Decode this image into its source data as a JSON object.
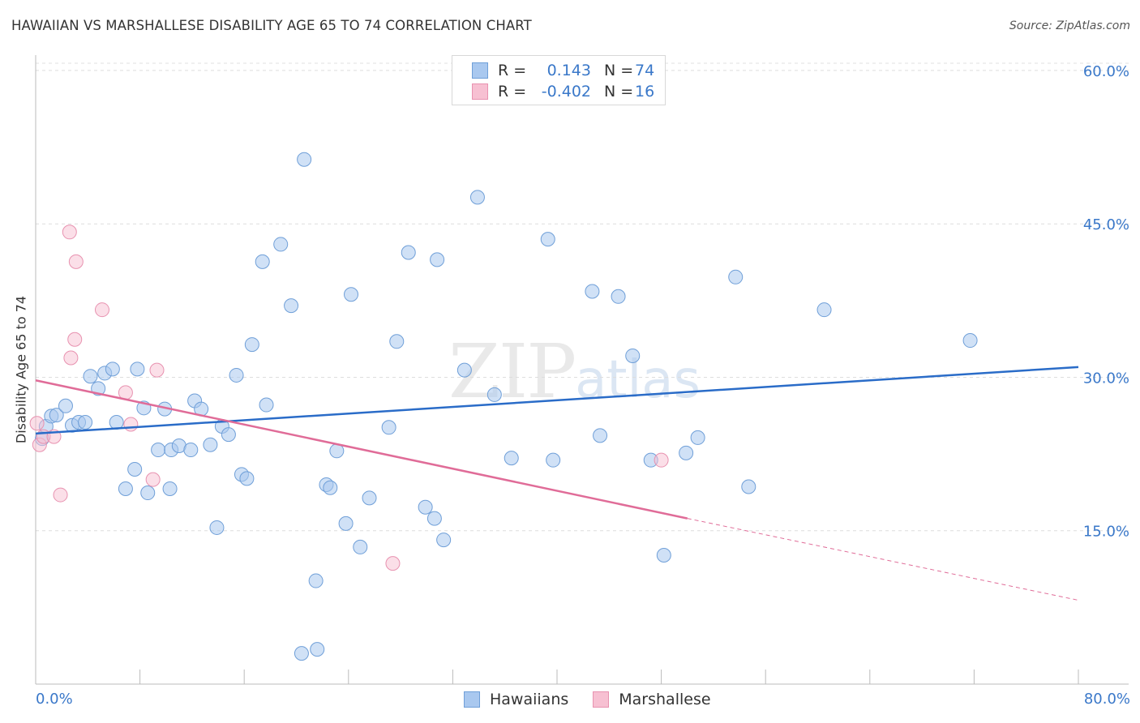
{
  "header": {
    "title": "HAWAIIAN VS MARSHALLESE DISABILITY AGE 65 TO 74 CORRELATION CHART",
    "source": "Source: ZipAtlas.com"
  },
  "watermark": {
    "zip": "ZIP",
    "atlas": "atlas"
  },
  "legend": {
    "series": [
      {
        "r_label": "R =",
        "r_value": "0.143",
        "n_label": "N =",
        "n_value": "74"
      },
      {
        "r_label": "R =",
        "r_value": "-0.402",
        "n_label": "N =",
        "n_value": "16"
      }
    ]
  },
  "bottom_legend": {
    "hawaiians": "Hawaiians",
    "marshallese": "Marshallese"
  },
  "x_axis": {
    "min_label": "0.0%",
    "max_label": "80.0%"
  },
  "colors": {
    "hawaiian_fill": "#a9c8ef",
    "hawaiian_stroke": "#6f9fd8",
    "hawaiian_line": "#2a6cc8",
    "marshallese_fill": "#f7c0d2",
    "marshallese_stroke": "#e892b0",
    "marshallese_line": "#e06c98",
    "tick_label": "#3a78c9"
  },
  "chart_data": {
    "type": "scatter",
    "title": "HAWAIIAN VS MARSHALLESE DISABILITY AGE 65 TO 74 CORRELATION CHART",
    "xlabel": "",
    "ylabel": "Disability Age 65 to 74",
    "xlim": [
      0,
      80
    ],
    "ylim": [
      0,
      61.5
    ],
    "y_ticks": [
      15,
      30,
      45,
      60
    ],
    "y_tick_labels": [
      "15.0%",
      "30.0%",
      "45.0%",
      "60.0%"
    ],
    "x_tick_labels": [
      "0.0%",
      "80.0%"
    ],
    "series": [
      {
        "name": "Hawaiians",
        "R": 0.143,
        "N": 74,
        "trend": {
          "x0": 0,
          "y0": 24.5,
          "x1": 80,
          "y1": 31.0
        },
        "points": [
          [
            0.5,
            24.0
          ],
          [
            0.8,
            25.2
          ],
          [
            1.2,
            26.2
          ],
          [
            1.6,
            26.3
          ],
          [
            2.3,
            27.2
          ],
          [
            2.8,
            25.3
          ],
          [
            3.3,
            25.6
          ],
          [
            3.8,
            25.6
          ],
          [
            4.2,
            30.1
          ],
          [
            4.8,
            28.9
          ],
          [
            5.3,
            30.4
          ],
          [
            5.9,
            30.8
          ],
          [
            6.2,
            25.6
          ],
          [
            6.9,
            19.1
          ],
          [
            7.6,
            21.0
          ],
          [
            7.8,
            30.8
          ],
          [
            8.3,
            27.0
          ],
          [
            8.6,
            18.7
          ],
          [
            9.4,
            22.9
          ],
          [
            9.9,
            26.9
          ],
          [
            10.3,
            19.1
          ],
          [
            10.4,
            22.9
          ],
          [
            11.0,
            23.3
          ],
          [
            11.9,
            22.9
          ],
          [
            12.2,
            27.7
          ],
          [
            12.7,
            26.9
          ],
          [
            13.4,
            23.4
          ],
          [
            13.9,
            15.3
          ],
          [
            14.3,
            25.2
          ],
          [
            14.8,
            24.4
          ],
          [
            15.4,
            30.2
          ],
          [
            15.8,
            20.5
          ],
          [
            16.2,
            20.1
          ],
          [
            16.6,
            33.2
          ],
          [
            17.4,
            41.3
          ],
          [
            17.7,
            27.3
          ],
          [
            18.8,
            43.0
          ],
          [
            19.6,
            37.0
          ],
          [
            20.4,
            3.0
          ],
          [
            20.6,
            51.3
          ],
          [
            21.5,
            10.1
          ],
          [
            21.6,
            3.4
          ],
          [
            22.3,
            19.5
          ],
          [
            22.6,
            19.2
          ],
          [
            23.1,
            22.8
          ],
          [
            23.8,
            15.7
          ],
          [
            24.2,
            38.1
          ],
          [
            24.9,
            13.4
          ],
          [
            25.6,
            18.2
          ],
          [
            27.1,
            25.1
          ],
          [
            27.7,
            33.5
          ],
          [
            28.6,
            42.2
          ],
          [
            29.9,
            17.3
          ],
          [
            30.6,
            16.2
          ],
          [
            30.8,
            41.5
          ],
          [
            31.3,
            14.1
          ],
          [
            32.9,
            30.7
          ],
          [
            33.9,
            47.6
          ],
          [
            35.2,
            28.3
          ],
          [
            36.5,
            22.1
          ],
          [
            39.3,
            43.5
          ],
          [
            39.7,
            21.9
          ],
          [
            42.7,
            38.4
          ],
          [
            43.3,
            24.3
          ],
          [
            44.7,
            37.9
          ],
          [
            45.8,
            32.1
          ],
          [
            47.2,
            21.9
          ],
          [
            48.2,
            12.6
          ],
          [
            49.9,
            22.6
          ],
          [
            50.8,
            24.1
          ],
          [
            53.7,
            39.8
          ],
          [
            54.7,
            19.3
          ],
          [
            60.5,
            36.6
          ],
          [
            71.7,
            33.6
          ]
        ]
      },
      {
        "name": "Marshallese",
        "R": -0.402,
        "N": 16,
        "trend": {
          "x0": 0,
          "y0": 29.7,
          "x1": 50.0,
          "y1": 16.2,
          "dashed_to": {
            "x": 80,
            "y": 8.2
          }
        },
        "points": [
          [
            0.1,
            25.5
          ],
          [
            0.3,
            23.4
          ],
          [
            0.6,
            24.2
          ],
          [
            1.4,
            24.2
          ],
          [
            1.9,
            18.5
          ],
          [
            2.6,
            44.2
          ],
          [
            2.7,
            31.9
          ],
          [
            3.0,
            33.7
          ],
          [
            3.1,
            41.3
          ],
          [
            5.1,
            36.6
          ],
          [
            6.9,
            28.5
          ],
          [
            7.3,
            25.4
          ],
          [
            9.0,
            20.0
          ],
          [
            9.3,
            30.7
          ],
          [
            27.4,
            11.8
          ],
          [
            48.0,
            21.9
          ]
        ]
      }
    ]
  }
}
